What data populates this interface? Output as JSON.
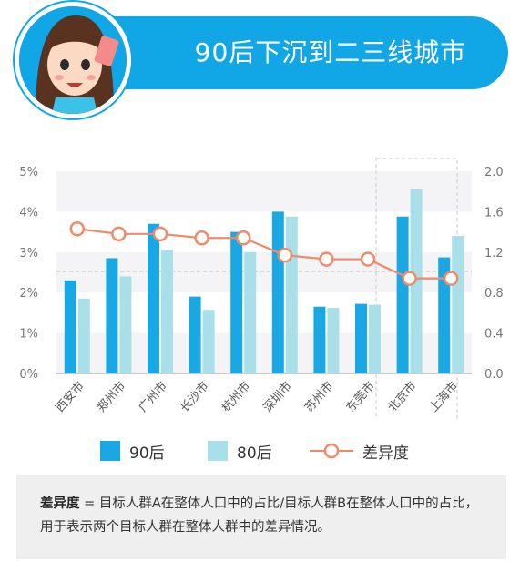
{
  "header": {
    "title": "90后下沉到二三线城市"
  },
  "colors": {
    "accent": "#11a6e6",
    "series_90": "#1aa8e5",
    "series_80": "#a9dfe8",
    "diff_line": "#f08a6a"
  },
  "chart_data": {
    "type": "bar",
    "categories": [
      "西安市",
      "郑州市",
      "广州市",
      "长沙市",
      "杭州市",
      "深圳市",
      "苏州市",
      "东莞市",
      "北京市",
      "上海市"
    ],
    "series": [
      {
        "name": "90后",
        "values": [
          2.3,
          2.85,
          3.7,
          1.9,
          3.5,
          4.0,
          1.65,
          1.72,
          3.88,
          2.87
        ]
      },
      {
        "name": "80后",
        "values": [
          1.85,
          2.4,
          3.05,
          1.57,
          3.0,
          3.88,
          1.62,
          1.7,
          4.55,
          3.4
        ]
      }
    ],
    "line_series": {
      "name": "差异度",
      "values": [
        1.43,
        1.38,
        1.38,
        1.34,
        1.34,
        1.17,
        1.13,
        1.13,
        0.94,
        0.94
      ]
    },
    "ylim_left": [
      0,
      5
    ],
    "yticks_left": [
      "0%",
      "1%",
      "2%",
      "3%",
      "4%",
      "5%"
    ],
    "ylim_right": [
      0,
      2.0
    ],
    "yticks_right": [
      "0.0",
      "0.4",
      "0.8",
      "1.2",
      "1.6",
      "2.0"
    ],
    "reference_line_right": 1.0,
    "highlight_categories": [
      "北京市",
      "上海市"
    ],
    "legend": [
      "90后",
      "80后",
      "差异度"
    ],
    "legend_position": "bottom"
  },
  "note": {
    "term": "差异度",
    "text": " = 目标人群A在整体人口中的占比/目标人群B在整体人口中的占比，用于表示两个目标人群在整体人群中的差异情况。"
  }
}
